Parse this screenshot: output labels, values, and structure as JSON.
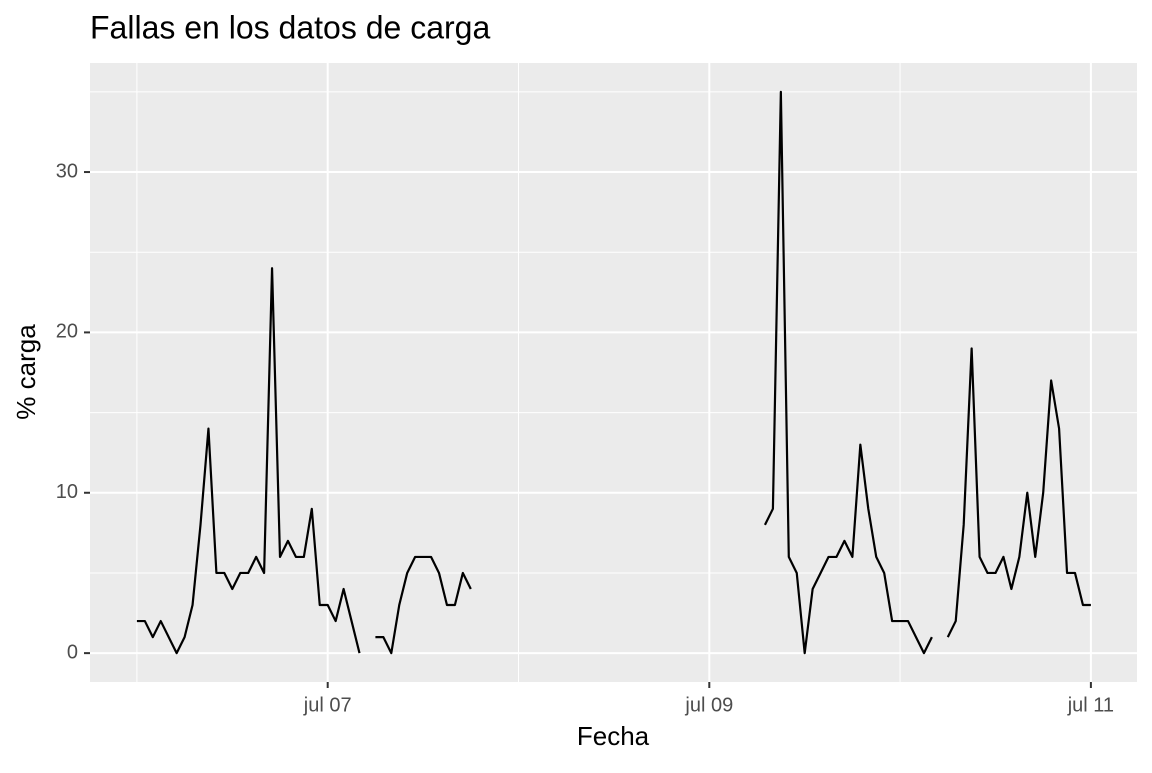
{
  "chart_data": {
    "type": "line",
    "title": "Fallas en los datos de carga",
    "x_label": "Fecha",
    "y_label": "% carga",
    "x": [
      0,
      1,
      2,
      3,
      4,
      5,
      6,
      7,
      8,
      9,
      10,
      11,
      12,
      13,
      14,
      15,
      16,
      17,
      18,
      19,
      20,
      21,
      22,
      23,
      24,
      25,
      26,
      27,
      28,
      29,
      30,
      31,
      32,
      33,
      34,
      35,
      36,
      37,
      38,
      39,
      40,
      41,
      42,
      60,
      79,
      80,
      81,
      82,
      83,
      84,
      85,
      86,
      87,
      88,
      89,
      90,
      91,
      92,
      93,
      94,
      95,
      96,
      97,
      98,
      99,
      100,
      101,
      102,
      103,
      104,
      105,
      106,
      107,
      108,
      109,
      110,
      111,
      112,
      113,
      114,
      115,
      116,
      117,
      118,
      119,
      120
    ],
    "series": [
      {
        "name": "% carga",
        "color": "#000000",
        "values": [
          2,
          2,
          1,
          2,
          1,
          0,
          1,
          3,
          8,
          14,
          5,
          5,
          4,
          5,
          5,
          6,
          5,
          24,
          6,
          7,
          6,
          6,
          9,
          3,
          3,
          2,
          4,
          2,
          0,
          null,
          1,
          1,
          0,
          3,
          5,
          6,
          6,
          6,
          5,
          3,
          3,
          5,
          4,
          null,
          8,
          9,
          35,
          6,
          5,
          0,
          4,
          5,
          6,
          6,
          7,
          6,
          13,
          9,
          6,
          5,
          2,
          2,
          2,
          1,
          0,
          1,
          null,
          1,
          2,
          8,
          19,
          6,
          5,
          5,
          6,
          4,
          6,
          10,
          6,
          10,
          17,
          14,
          5,
          5,
          3,
          3
        ]
      }
    ],
    "xlim": [
      -5.9,
      125.8
    ],
    "xticks": [
      {
        "value": 24,
        "label": "jul 07"
      },
      {
        "value": 72,
        "label": "jul 09"
      },
      {
        "value": 120,
        "label": "jul 11"
      }
    ],
    "ylim": [
      -1.8,
      36.8
    ],
    "yticks": [
      0,
      10,
      20,
      30
    ],
    "grid": true
  }
}
